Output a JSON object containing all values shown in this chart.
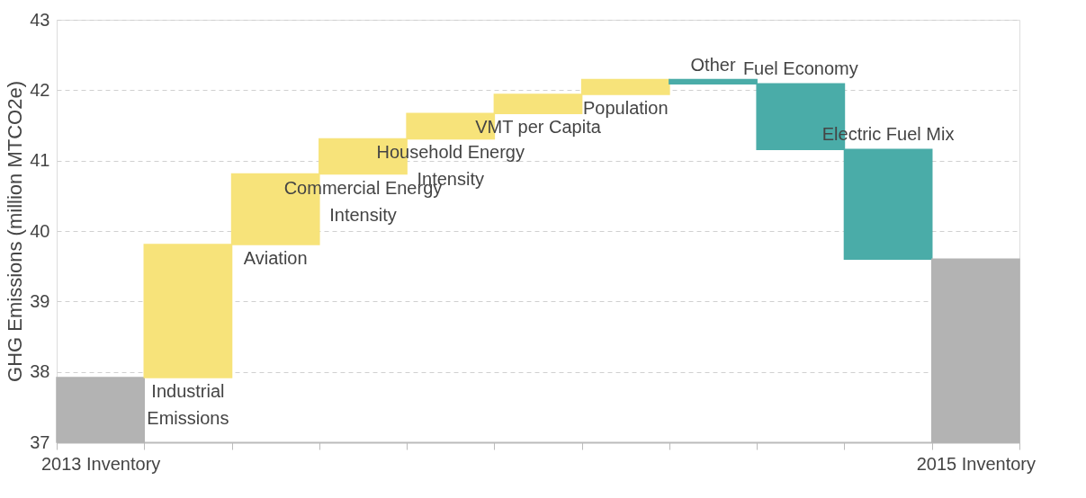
{
  "chart_data": {
    "type": "bar",
    "ylabel": "GHG Emissions (million MTCO2e)",
    "categories": [
      "2013 Inventory",
      "Industrial Emissions",
      "Aviation",
      "Commercial Energy Intensity",
      "Household Energy Intensity",
      "VMT per Capita",
      "Population",
      "Other",
      "Fuel Economy",
      "Electric Fuel Mix",
      "2015 Inventory"
    ],
    "base": [
      37,
      37.92,
      39.81,
      40.81,
      41.31,
      41.67,
      41.94,
      42.15,
      42.09,
      41.16,
      37
    ],
    "values": [
      0.92,
      1.89,
      1.0,
      0.5,
      0.36,
      0.27,
      0.21,
      -0.06,
      -0.93,
      -1.56,
      2.6
    ],
    "colors": [
      "#b3b3b3",
      "#f7e37a",
      "#f7e37a",
      "#f7e37a",
      "#f7e37a",
      "#f7e37a",
      "#f7e37a",
      "#4aaca8",
      "#4aaca8",
      "#4aaca8",
      "#b3b3b3"
    ],
    "ylim": [
      37,
      43
    ],
    "yticks": [
      37,
      38,
      39,
      40,
      41,
      42,
      43
    ],
    "grid": "y"
  }
}
